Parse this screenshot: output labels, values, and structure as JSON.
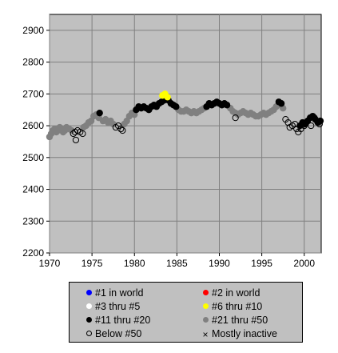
{
  "chart_data": {
    "type": "scatter",
    "xlabel": "",
    "ylabel": "",
    "xlim": [
      1970,
      2002
    ],
    "ylim": [
      2200,
      2950
    ],
    "x_ticks": [
      "1970",
      "1975",
      "1980",
      "1985",
      "1990",
      "1995",
      "2000"
    ],
    "y_ticks": [
      "2200",
      "2300",
      "2400",
      "2500",
      "2600",
      "2700",
      "2800",
      "2900"
    ],
    "grid": true,
    "plot_background": "#c0c0c0",
    "legend_position": "bottom",
    "legend": [
      {
        "label": "#1 in world",
        "marker": "dot",
        "color": "#0000ff"
      },
      {
        "label": "#2 in world",
        "marker": "dot",
        "color": "#ff0000"
      },
      {
        "label": "#3 thru #5",
        "marker": "dot",
        "color": "#ffffff"
      },
      {
        "label": "#6 thru #10",
        "marker": "dot",
        "color": "#ffff00"
      },
      {
        "label": "#11 thru #20",
        "marker": "dot",
        "color": "#000000"
      },
      {
        "label": "#21 thru #50",
        "marker": "dot",
        "color": "#808080"
      },
      {
        "label": "Below #50",
        "marker": "ring",
        "color": "#000000"
      },
      {
        "label": "Mostly inactive",
        "marker": "cross",
        "color": "#000000"
      }
    ],
    "series": [
      {
        "category": "#21 thru #50",
        "color": "#808080",
        "style": "dot",
        "points": [
          [
            1970.0,
            2565
          ],
          [
            1970.2,
            2575
          ],
          [
            1970.4,
            2585
          ],
          [
            1970.6,
            2590
          ],
          [
            1970.8,
            2580
          ],
          [
            1971.0,
            2585
          ],
          [
            1971.2,
            2595
          ],
          [
            1971.4,
            2590
          ],
          [
            1971.6,
            2580
          ],
          [
            1971.8,
            2585
          ],
          [
            1972.0,
            2595
          ],
          [
            1972.3,
            2590
          ],
          [
            1972.6,
            2585
          ],
          [
            1974.0,
            2595
          ],
          [
            1974.3,
            2600
          ],
          [
            1974.6,
            2610
          ],
          [
            1974.9,
            2615
          ],
          [
            1975.2,
            2630
          ],
          [
            1975.5,
            2635
          ],
          [
            1975.8,
            2625
          ],
          [
            1976.3,
            2615
          ],
          [
            1976.6,
            2620
          ],
          [
            1976.9,
            2610
          ],
          [
            1977.2,
            2615
          ],
          [
            1977.5,
            2605
          ],
          [
            1978.8,
            2605
          ],
          [
            1979.1,
            2615
          ],
          [
            1979.4,
            2630
          ],
          [
            1979.7,
            2640
          ],
          [
            1980.0,
            2635
          ],
          [
            1985.2,
            2650
          ],
          [
            1985.5,
            2645
          ],
          [
            1985.8,
            2645
          ],
          [
            1986.1,
            2650
          ],
          [
            1986.4,
            2645
          ],
          [
            1986.7,
            2640
          ],
          [
            1987.0,
            2645
          ],
          [
            1987.3,
            2640
          ],
          [
            1987.6,
            2645
          ],
          [
            1987.9,
            2650
          ],
          [
            1988.2,
            2655
          ],
          [
            1991.3,
            2655
          ],
          [
            1991.6,
            2645
          ],
          [
            1991.9,
            2640
          ],
          [
            1992.2,
            2635
          ],
          [
            1992.5,
            2640
          ],
          [
            1992.8,
            2645
          ],
          [
            1993.1,
            2640
          ],
          [
            1993.4,
            2635
          ],
          [
            1993.7,
            2640
          ],
          [
            1994.0,
            2635
          ],
          [
            1994.3,
            2630
          ],
          [
            1994.6,
            2630
          ],
          [
            1994.9,
            2635
          ],
          [
            1995.2,
            2640
          ],
          [
            1995.5,
            2635
          ],
          [
            1995.8,
            2640
          ],
          [
            1996.1,
            2645
          ],
          [
            1996.4,
            2650
          ],
          [
            1996.7,
            2660
          ],
          [
            1997.2,
            2665
          ],
          [
            1997.5,
            2655
          ]
        ]
      },
      {
        "category": "#11 thru #20",
        "color": "#000000",
        "style": "dot",
        "points": [
          [
            1975.9,
            2640
          ],
          [
            1980.2,
            2650
          ],
          [
            1980.5,
            2660
          ],
          [
            1980.8,
            2655
          ],
          [
            1981.1,
            2660
          ],
          [
            1981.4,
            2655
          ],
          [
            1981.7,
            2650
          ],
          [
            1982.0,
            2660
          ],
          [
            1982.3,
            2665
          ],
          [
            1982.6,
            2660
          ],
          [
            1982.9,
            2670
          ],
          [
            1983.2,
            2675
          ],
          [
            1983.5,
            2680
          ],
          [
            1984.0,
            2680
          ],
          [
            1984.3,
            2670
          ],
          [
            1984.6,
            2665
          ],
          [
            1984.9,
            2660
          ],
          [
            1988.5,
            2660
          ],
          [
            1988.8,
            2670
          ],
          [
            1989.1,
            2665
          ],
          [
            1989.4,
            2670
          ],
          [
            1989.7,
            2675
          ],
          [
            1990.0,
            2670
          ],
          [
            1990.3,
            2665
          ],
          [
            1990.6,
            2670
          ],
          [
            1990.9,
            2665
          ],
          [
            1997.0,
            2675
          ],
          [
            1997.3,
            2670
          ],
          [
            1999.5,
            2600
          ],
          [
            1999.8,
            2610
          ],
          [
            2000.1,
            2605
          ],
          [
            2000.4,
            2615
          ],
          [
            2000.7,
            2625
          ],
          [
            2001.0,
            2630
          ],
          [
            2001.3,
            2620
          ],
          [
            2001.6,
            2610
          ],
          [
            2001.9,
            2615
          ]
        ]
      },
      {
        "category": "#6 thru #10",
        "color": "#ffff00",
        "style": "dot",
        "points": [
          [
            1983.3,
            2695
          ],
          [
            1983.6,
            2700
          ],
          [
            1983.9,
            2690
          ]
        ]
      },
      {
        "category": "Below #50",
        "color": "#000000",
        "style": "ring",
        "points": [
          [
            1972.8,
            2575
          ],
          [
            1973.0,
            2580
          ],
          [
            1973.1,
            2555
          ],
          [
            1973.3,
            2585
          ],
          [
            1973.6,
            2580
          ],
          [
            1973.9,
            2575
          ],
          [
            1977.8,
            2595
          ],
          [
            1978.1,
            2600
          ],
          [
            1978.4,
            2590
          ],
          [
            1978.6,
            2585
          ],
          [
            1991.9,
            2625
          ],
          [
            1997.8,
            2620
          ],
          [
            1998.1,
            2610
          ],
          [
            1998.3,
            2595
          ],
          [
            1998.6,
            2600
          ],
          [
            1998.9,
            2605
          ],
          [
            1999.1,
            2590
          ],
          [
            1999.3,
            2580
          ],
          [
            1999.6,
            2590
          ],
          [
            2000.0,
            2600
          ],
          [
            2000.8,
            2600
          ],
          [
            2001.2,
            2625
          ],
          [
            2001.5,
            2615
          ],
          [
            2001.8,
            2605
          ]
        ]
      }
    ]
  }
}
